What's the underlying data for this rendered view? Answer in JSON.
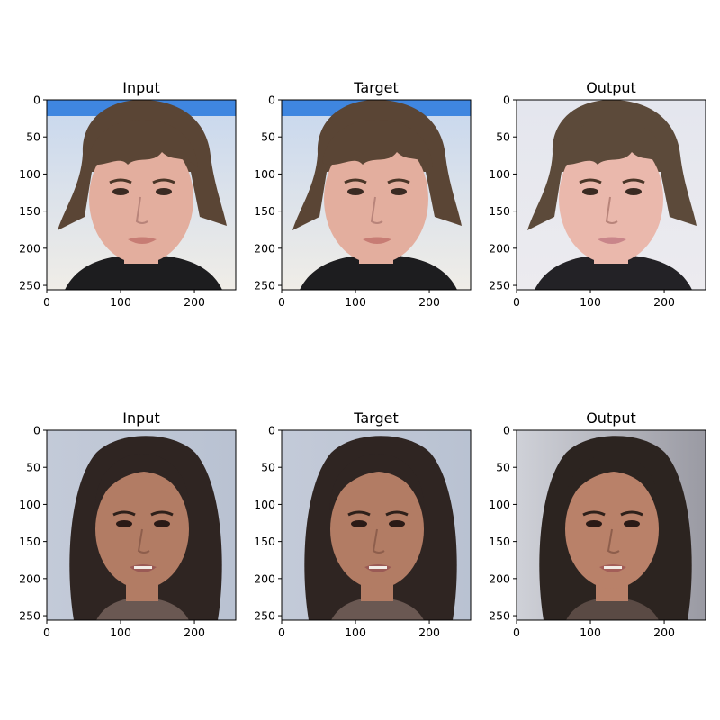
{
  "figure": {
    "rows": [
      {
        "panels": [
          {
            "title": "Input",
            "picture": "boy-portrait",
            "colors": {
              "bg_top": "#c7d7ee",
              "bg_bottom": "#f0ede7",
              "banner": "#3f86e0",
              "hair": "#5a4535",
              "skin": "#e3ae9e",
              "lips": "#c77c74",
              "shirt": "#1d1d1f"
            },
            "xticks": [
              "0",
              "100",
              "200"
            ],
            "yticks": [
              "0",
              "50",
              "100",
              "150",
              "200",
              "250"
            ]
          },
          {
            "title": "Target",
            "picture": "boy-portrait",
            "colors": {
              "bg_top": "#c7d7ee",
              "bg_bottom": "#f0ede7",
              "banner": "#3f86e0",
              "hair": "#5a4535",
              "skin": "#e3ae9e",
              "lips": "#c77c74",
              "shirt": "#1d1d1f"
            },
            "xticks": [
              "0",
              "100",
              "200"
            ],
            "yticks": [
              "0",
              "50",
              "100",
              "150",
              "200",
              "250"
            ]
          },
          {
            "title": "Output",
            "picture": "boy-portrait",
            "colors": {
              "bg_top": "#e4e6ee",
              "bg_bottom": "#ecebef",
              "banner": "#e4e6ee",
              "hair": "#5c4a3a",
              "skin": "#eab8ac",
              "lips": "#c9858a",
              "shirt": "#232226"
            },
            "xticks": [
              "0",
              "100",
              "200"
            ],
            "yticks": [
              "0",
              "50",
              "100",
              "150",
              "200",
              "250"
            ]
          }
        ]
      },
      {
        "panels": [
          {
            "title": "Input",
            "picture": "woman-portrait",
            "colors": {
              "bg_top": "#c3cad8",
              "bg_bottom": "#b9c2d2",
              "banner": "#c3cad8",
              "hair": "#2f2522",
              "skin": "#b27c64",
              "lips": "#9a5a55",
              "shirt": "#6a5852"
            },
            "xticks": [
              "0",
              "100",
              "200"
            ],
            "yticks": [
              "0",
              "50",
              "100",
              "150",
              "200",
              "250"
            ]
          },
          {
            "title": "Target",
            "picture": "woman-portrait",
            "colors": {
              "bg_top": "#c3cad8",
              "bg_bottom": "#b9c2d2",
              "banner": "#c3cad8",
              "hair": "#2f2522",
              "skin": "#b27c64",
              "lips": "#9a5a55",
              "shirt": "#6a5852"
            },
            "xticks": [
              "0",
              "100",
              "200"
            ],
            "yticks": [
              "0",
              "50",
              "100",
              "150",
              "200",
              "250"
            ]
          },
          {
            "title": "Output",
            "picture": "woman-portrait",
            "colors": {
              "bg_top": "#cfd1d8",
              "bg_bottom": "#9a9aa3",
              "banner": "#cfd1d8",
              "hair": "#2c2420",
              "skin": "#b98169",
              "lips": "#a35e58",
              "shirt": "#5a4a44"
            },
            "xticks": [
              "0",
              "100",
              "200"
            ],
            "yticks": [
              "0",
              "50",
              "100",
              "150",
              "200",
              "250"
            ]
          }
        ]
      }
    ]
  }
}
